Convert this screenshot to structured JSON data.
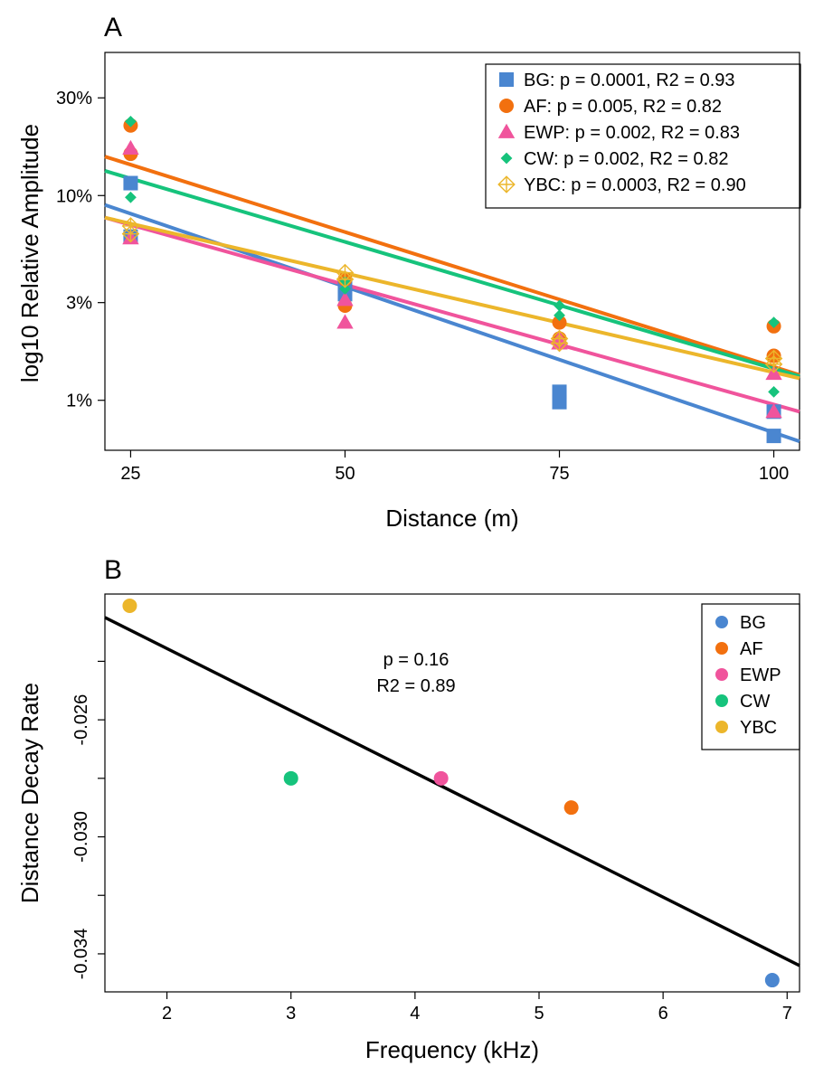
{
  "chart_data": [
    {
      "type": "scatter",
      "panel": "A",
      "xlabel": "Distance (m)",
      "ylabel": "log10 Relative Amplitude",
      "xlim": [
        22,
        103
      ],
      "ylim_percent": [
        0.57,
        50
      ],
      "y_scale": "log10",
      "xticks": [
        25,
        50,
        75,
        100
      ],
      "yticks": [
        1,
        3,
        10,
        30
      ],
      "ytick_labels": [
        "1%",
        "3%",
        "10%",
        "30%"
      ],
      "grid": false,
      "legend_position": "top-right",
      "legend": [
        {
          "name": "BG",
          "label": "BG: p = 0.0001, R2 = 0.93"
        },
        {
          "name": "AF",
          "label": "AF: p = 0.005, R2 = 0.82"
        },
        {
          "name": "EWP",
          "label": "EWP: p = 0.002, R2 = 0.83"
        },
        {
          "name": "CW",
          "label": "CW: p = 0.002, R2 = 0.82"
        },
        {
          "name": "YBC",
          "label": "YBC: p = 0.0003, R2 = 0.90"
        }
      ],
      "series": [
        {
          "name": "BG",
          "color": "#4A86D0",
          "marker": "square",
          "points": [
            [
              25,
              11.5
            ],
            [
              25,
              6.3
            ],
            [
              50,
              3.6
            ],
            [
              50,
              3.3
            ],
            [
              75,
              1.1
            ],
            [
              75,
              0.98
            ],
            [
              100,
              0.88
            ],
            [
              100,
              0.67
            ]
          ],
          "fit": [
            [
              22,
              9.0
            ],
            [
              103,
              0.63
            ]
          ]
        },
        {
          "name": "AF",
          "color": "#F2700F",
          "marker": "circle",
          "points": [
            [
              25,
              22
            ],
            [
              25,
              16
            ],
            [
              50,
              3.9
            ],
            [
              50,
              2.9
            ],
            [
              75,
              2.4
            ],
            [
              75,
              2.0
            ],
            [
              100,
              2.3
            ],
            [
              100,
              1.65
            ]
          ],
          "fit": [
            [
              22,
              15.5
            ],
            [
              103,
              1.33
            ]
          ]
        },
        {
          "name": "EWP",
          "color": "#F0549C",
          "marker": "triangle",
          "points": [
            [
              25,
              17
            ],
            [
              25,
              6.2
            ],
            [
              50,
              3.1
            ],
            [
              50,
              2.4
            ],
            [
              75,
              2.0
            ],
            [
              75,
              1.9
            ],
            [
              100,
              1.35
            ],
            [
              100,
              0.88
            ]
          ],
          "fit": [
            [
              22,
              7.8
            ],
            [
              103,
              0.88
            ]
          ]
        },
        {
          "name": "CW",
          "color": "#16C37C",
          "marker": "diamond",
          "points": [
            [
              25,
              23
            ],
            [
              25,
              9.8
            ],
            [
              50,
              3.8
            ],
            [
              50,
              3.5
            ],
            [
              75,
              2.9
            ],
            [
              75,
              2.6
            ],
            [
              100,
              2.4
            ],
            [
              100,
              1.1
            ]
          ],
          "fit": [
            [
              22,
              13.2
            ],
            [
              103,
              1.31
            ]
          ]
        },
        {
          "name": "YBC",
          "color": "#ECB62B",
          "marker": "crossed-diamond-open",
          "points": [
            [
              25,
              7.1
            ],
            [
              25,
              6.5
            ],
            [
              50,
              4.2
            ],
            [
              50,
              3.9
            ],
            [
              75,
              2.0
            ],
            [
              75,
              1.9
            ],
            [
              100,
              1.6
            ],
            [
              100,
              1.5
            ]
          ],
          "fit": [
            [
              22,
              7.8
            ],
            [
              103,
              1.28
            ]
          ]
        }
      ]
    },
    {
      "type": "scatter",
      "panel": "B",
      "xlabel": "Frequency (kHz)",
      "ylabel": "Distance Decay Rate",
      "xlim": [
        1.5,
        7.1
      ],
      "ylim": [
        -0.0353,
        -0.0217
      ],
      "xticks": [
        2,
        3,
        4,
        5,
        6,
        7
      ],
      "yticks": [
        -0.034,
        -0.03,
        -0.026
      ],
      "ytick_labels": [
        "-0.034",
        "-0.030",
        "-0.026"
      ],
      "grid": false,
      "legend_position": "top-right",
      "annotation": [
        "p = 0.16",
        "R2 = 0.89"
      ],
      "points": [
        {
          "name": "BG",
          "color": "#4A86D0",
          "x": 6.88,
          "y": -0.0349
        },
        {
          "name": "AF",
          "color": "#F2700F",
          "x": 5.26,
          "y": -0.029
        },
        {
          "name": "EWP",
          "color": "#F0549C",
          "x": 4.21,
          "y": -0.028
        },
        {
          "name": "CW",
          "color": "#16C37C",
          "x": 3.0,
          "y": -0.028
        },
        {
          "name": "YBC",
          "color": "#ECB62B",
          "x": 1.7,
          "y": -0.0221
        }
      ],
      "fit": [
        [
          1.5,
          -0.0225
        ],
        [
          7.1,
          -0.0344
        ]
      ],
      "fit_color": "#000000"
    }
  ]
}
